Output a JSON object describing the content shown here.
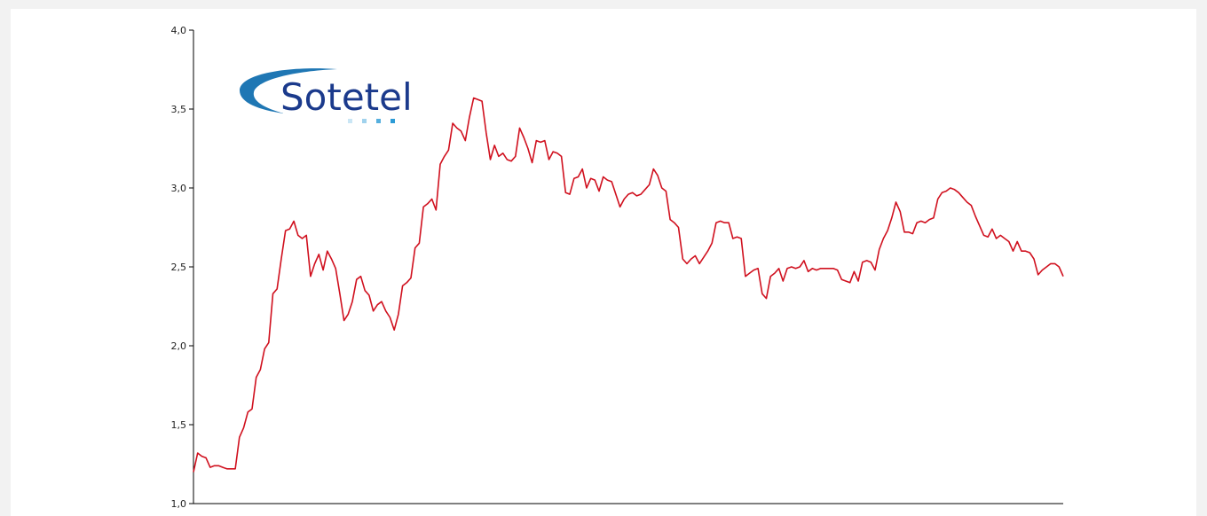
{
  "chart_data": {
    "type": "line",
    "title": "",
    "xlabel": "",
    "ylabel": "",
    "ylim": [
      1.0,
      4.0
    ],
    "y_ticks": [
      "1,0",
      "1,5",
      "2,0",
      "2,5",
      "3,0",
      "3,5",
      "4,0"
    ],
    "x_tick_labels": [],
    "grid": false,
    "colors": {
      "line": "#d0101e",
      "axis": "#000000"
    },
    "series": [
      {
        "values": [
          1.2,
          1.32,
          1.3,
          1.29,
          1.23,
          1.24,
          1.24,
          1.23,
          1.22,
          1.22,
          1.22,
          1.42,
          1.48,
          1.58,
          1.6,
          1.8,
          1.85,
          1.98,
          2.02,
          2.33,
          2.36,
          2.55,
          2.73,
          2.74,
          2.79,
          2.7,
          2.68,
          2.7,
          2.44,
          2.52,
          2.58,
          2.48,
          2.6,
          2.55,
          2.49,
          2.33,
          2.16,
          2.2,
          2.28,
          2.42,
          2.44,
          2.35,
          2.32,
          2.22,
          2.26,
          2.28,
          2.22,
          2.18,
          2.1,
          2.2,
          2.38,
          2.4,
          2.43,
          2.62,
          2.65,
          2.88,
          2.9,
          2.93,
          2.86,
          3.15,
          3.2,
          3.24,
          3.41,
          3.38,
          3.36,
          3.3,
          3.45,
          3.57,
          3.56,
          3.55,
          3.35,
          3.18,
          3.27,
          3.2,
          3.22,
          3.18,
          3.17,
          3.2,
          3.38,
          3.32,
          3.25,
          3.16,
          3.3,
          3.29,
          3.3,
          3.18,
          3.23,
          3.22,
          3.2,
          2.97,
          2.96,
          3.06,
          3.07,
          3.12,
          3.0,
          3.06,
          3.05,
          2.98,
          3.07,
          3.05,
          3.04,
          2.96,
          2.88,
          2.93,
          2.96,
          2.97,
          2.95,
          2.96,
          2.99,
          3.02,
          3.12,
          3.08,
          3.0,
          2.98,
          2.8,
          2.78,
          2.75,
          2.55,
          2.52,
          2.55,
          2.57,
          2.52,
          2.56,
          2.6,
          2.65,
          2.78,
          2.79,
          2.78,
          2.78,
          2.68,
          2.69,
          2.68,
          2.44,
          2.46,
          2.48,
          2.49,
          2.33,
          2.3,
          2.44,
          2.46,
          2.49,
          2.41,
          2.49,
          2.5,
          2.49,
          2.5,
          2.54,
          2.47,
          2.49,
          2.48,
          2.49,
          2.49,
          2.49,
          2.49,
          2.48,
          2.42,
          2.41,
          2.4,
          2.47,
          2.41,
          2.53,
          2.54,
          2.53,
          2.48,
          2.61,
          2.68,
          2.73,
          2.81,
          2.91,
          2.85,
          2.72,
          2.72,
          2.71,
          2.78,
          2.79,
          2.78,
          2.8,
          2.81,
          2.93,
          2.97,
          2.98,
          3.0,
          2.99,
          2.97,
          2.94,
          2.91,
          2.89,
          2.82,
          2.76,
          2.7,
          2.69,
          2.74,
          2.68,
          2.7,
          2.68,
          2.66,
          2.6,
          2.66,
          2.6,
          2.6,
          2.59,
          2.55,
          2.45,
          2.48,
          2.5,
          2.52,
          2.52,
          2.5,
          2.44
        ]
      }
    ]
  },
  "logo": {
    "text": "Sotetel",
    "colors": {
      "swoosh": "#1f77b4",
      "text": "#1b3a8c",
      "squares": "#2c9bd6"
    }
  }
}
